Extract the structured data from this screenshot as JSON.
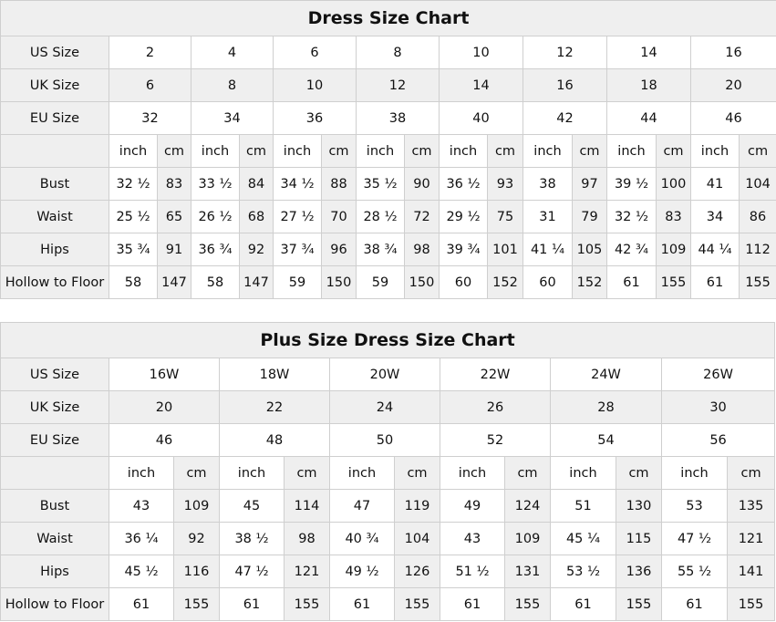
{
  "charts": [
    {
      "title": "Dress Size Chart",
      "size_rows": [
        {
          "label": "US Size",
          "values": [
            "2",
            "4",
            "6",
            "8",
            "10",
            "12",
            "14",
            "16"
          ]
        },
        {
          "label": "UK Size",
          "values": [
            "6",
            "8",
            "10",
            "12",
            "14",
            "16",
            "18",
            "20"
          ]
        },
        {
          "label": "EU Size",
          "values": [
            "32",
            "34",
            "36",
            "38",
            "40",
            "42",
            "44",
            "46"
          ]
        }
      ],
      "unit_labels": {
        "inch": "inch",
        "cm": "cm"
      },
      "measure_rows": [
        {
          "label": "Bust",
          "values": [
            "32 ½",
            "83",
            "33 ½",
            "84",
            "34 ½",
            "88",
            "35 ½",
            "90",
            "36 ½",
            "93",
            "38",
            "97",
            "39 ½",
            "100",
            "41",
            "104"
          ]
        },
        {
          "label": "Waist",
          "values": [
            "25 ½",
            "65",
            "26 ½",
            "68",
            "27 ½",
            "70",
            "28 ½",
            "72",
            "29 ½",
            "75",
            "31",
            "79",
            "32 ½",
            "83",
            "34",
            "86"
          ]
        },
        {
          "label": "Hips",
          "values": [
            "35 ¾",
            "91",
            "36 ¾",
            "92",
            "37 ¾",
            "96",
            "38 ¾",
            "98",
            "39 ¾",
            "101",
            "41 ¼",
            "105",
            "42 ¾",
            "109",
            "44 ¼",
            "112"
          ]
        },
        {
          "label": "Hollow to Floor",
          "values": [
            "58",
            "147",
            "58",
            "147",
            "59",
            "150",
            "59",
            "150",
            "60",
            "152",
            "60",
            "152",
            "61",
            "155",
            "61",
            "155"
          ]
        }
      ]
    },
    {
      "title": "Plus Size Dress Size Chart",
      "size_rows": [
        {
          "label": "US Size",
          "values": [
            "16W",
            "18W",
            "20W",
            "22W",
            "24W",
            "26W"
          ]
        },
        {
          "label": "UK Size",
          "values": [
            "20",
            "22",
            "24",
            "26",
            "28",
            "30"
          ]
        },
        {
          "label": "EU Size",
          "values": [
            "46",
            "48",
            "50",
            "52",
            "54",
            "56"
          ]
        }
      ],
      "unit_labels": {
        "inch": "inch",
        "cm": "cm"
      },
      "measure_rows": [
        {
          "label": "Bust",
          "values": [
            "43",
            "109",
            "45",
            "114",
            "47",
            "119",
            "49",
            "124",
            "51",
            "130",
            "53",
            "135"
          ]
        },
        {
          "label": "Waist",
          "values": [
            "36 ¼",
            "92",
            "38 ½",
            "98",
            "40 ¾",
            "104",
            "43",
            "109",
            "45 ¼",
            "115",
            "47 ½",
            "121"
          ]
        },
        {
          "label": "Hips",
          "values": [
            "45 ½",
            "116",
            "47 ½",
            "121",
            "49 ½",
            "126",
            "51 ½",
            "131",
            "53 ½",
            "136",
            "55 ½",
            "141"
          ]
        },
        {
          "label": "Hollow to Floor",
          "values": [
            "61",
            "155",
            "61",
            "155",
            "61",
            "155",
            "61",
            "155",
            "61",
            "155",
            "61",
            "155"
          ]
        }
      ]
    }
  ]
}
